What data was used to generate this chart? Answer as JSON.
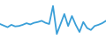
{
  "x": [
    0,
    1,
    2,
    3,
    4,
    5,
    6,
    7,
    8,
    9,
    10,
    11,
    12,
    13,
    14,
    15,
    16,
    17,
    18,
    19,
    20,
    21,
    22,
    23,
    24,
    25,
    26,
    27,
    28
  ],
  "y": [
    4,
    3.6,
    3.2,
    3.8,
    3.4,
    3.5,
    3.8,
    4.2,
    3.9,
    4.3,
    4.5,
    4.8,
    4.3,
    4.0,
    8.5,
    1.5,
    4.0,
    6.5,
    3.5,
    6.0,
    3.8,
    2.0,
    4.5,
    3.0,
    2.5,
    3.5,
    3.8,
    4.2,
    4.8
  ],
  "ylim_min": 0,
  "ylim_max": 10,
  "line_color": "#3a9fd8",
  "line_width": 1.3,
  "background_color": "#ffffff"
}
